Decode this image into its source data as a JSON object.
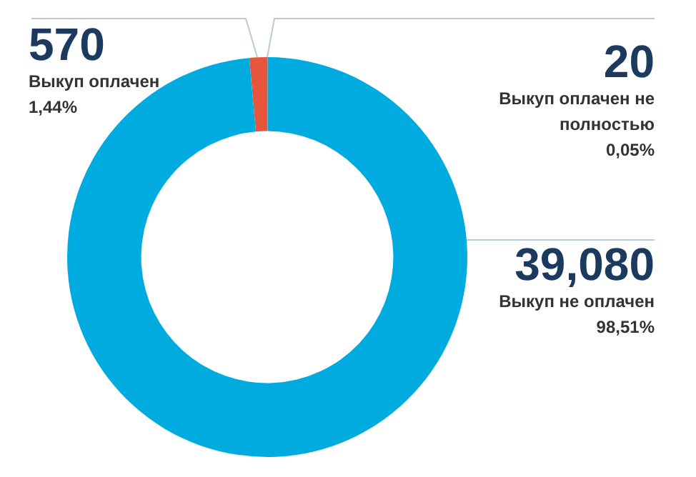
{
  "chart_data": {
    "type": "donut",
    "categories": [
      "Выкуп оплачен",
      "Выкуп оплачен не полностью",
      "Выкуп не оплачен"
    ],
    "values": [
      570,
      20,
      39080
    ],
    "value_labels": [
      "570",
      "20",
      "39,080"
    ],
    "colors": [
      "#e8553d",
      "#8a9ba8",
      "#00acdf"
    ],
    "annotations": [
      "1,44%",
      "0,05%",
      "98,51%"
    ],
    "legend": false
  }
}
